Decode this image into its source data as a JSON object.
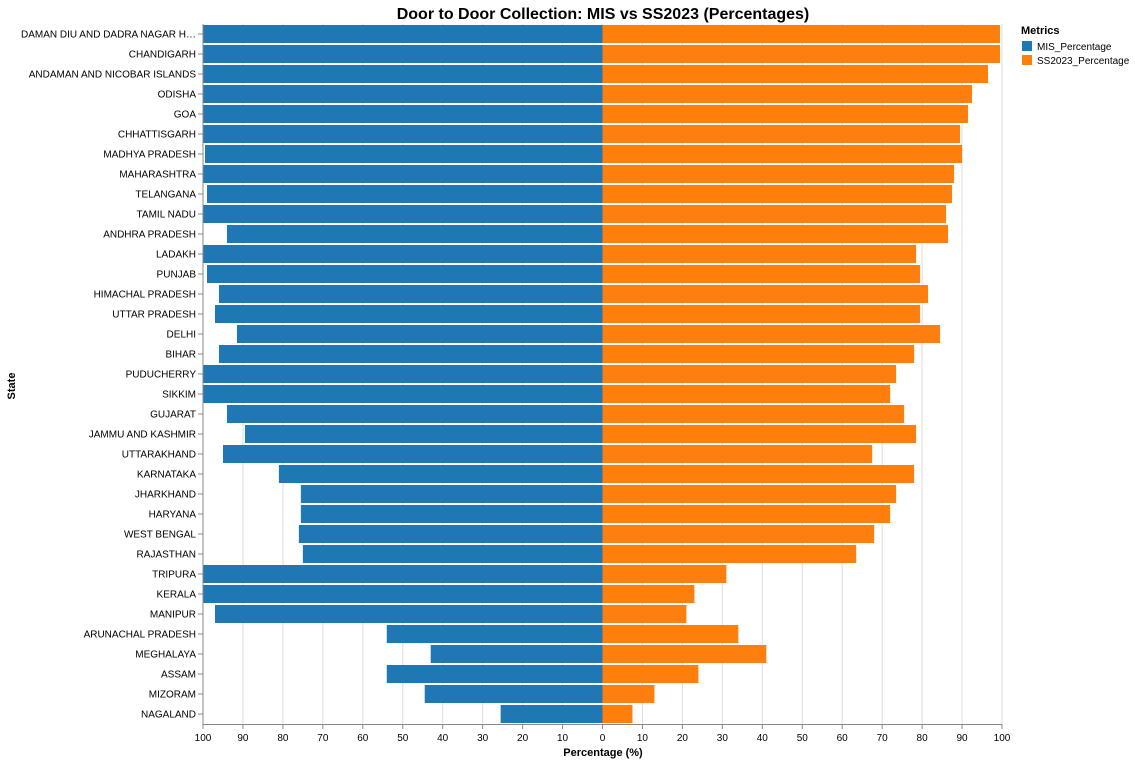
{
  "chart_data": {
    "type": "bar",
    "orientation": "horizontal-diverging",
    "title": "Door to Door Collection: MIS vs SS2023 (Percentages)",
    "xlabel": "Percentage (%)",
    "ylabel": "State",
    "x_ticks_left": [
      "100",
      "90",
      "80",
      "70",
      "60",
      "50",
      "40",
      "30",
      "20",
      "10",
      "0"
    ],
    "x_ticks_right": [
      "10",
      "20",
      "30",
      "40",
      "50",
      "60",
      "70",
      "80",
      "90",
      "100"
    ],
    "xlim": [
      0,
      100
    ],
    "grid": true,
    "legend_title": "Metrics",
    "legend_position": "top-right",
    "categories": [
      "DAMAN DIU AND DADRA NAGAR H…",
      "CHANDIGARH",
      "ANDAMAN AND NICOBAR ISLANDS",
      "ODISHA",
      "GOA",
      "CHHATTISGARH",
      "MADHYA PRADESH",
      "MAHARASHTRA",
      "TELANGANA",
      "TAMIL NADU",
      "ANDHRA PRADESH",
      "LADAKH",
      "PUNJAB",
      "HIMACHAL PRADESH",
      "UTTAR PRADESH",
      "DELHI",
      "BIHAR",
      "PUDUCHERRY",
      "SIKKIM",
      "GUJARAT",
      "JAMMU AND KASHMIR",
      "UTTARAKHAND",
      "KARNATAKA",
      "JHARKHAND",
      "HARYANA",
      "WEST BENGAL",
      "RAJASTHAN",
      "TRIPURA",
      "KERALA",
      "MANIPUR",
      "ARUNACHAL PRADESH",
      "MEGHALAYA",
      "ASSAM",
      "MIZORAM",
      "NAGALAND"
    ],
    "series": [
      {
        "name": "MIS_Percentage",
        "color": "#1f77b4",
        "side": "left",
        "values": [
          100,
          100,
          100,
          100,
          100,
          100,
          99.5,
          100,
          99,
          100,
          94,
          100,
          99,
          96,
          97,
          91.5,
          96,
          100,
          100,
          94,
          89.5,
          95,
          81,
          75.5,
          75.5,
          76,
          75,
          100,
          100,
          97,
          54,
          43,
          54,
          44.5,
          25.5
        ]
      },
      {
        "name": "SS2023_Percentage",
        "color": "#ff7f0e",
        "side": "right",
        "values": [
          99.5,
          99.5,
          96.5,
          92.5,
          91.5,
          89.5,
          90,
          88,
          87.5,
          86,
          86.5,
          78.5,
          79.5,
          81.5,
          79.5,
          84.5,
          78,
          73.5,
          72,
          75.5,
          78.5,
          67.5,
          78,
          73.5,
          72,
          68,
          63.5,
          31,
          23,
          21,
          34,
          41,
          24,
          13,
          7.5
        ]
      }
    ]
  }
}
